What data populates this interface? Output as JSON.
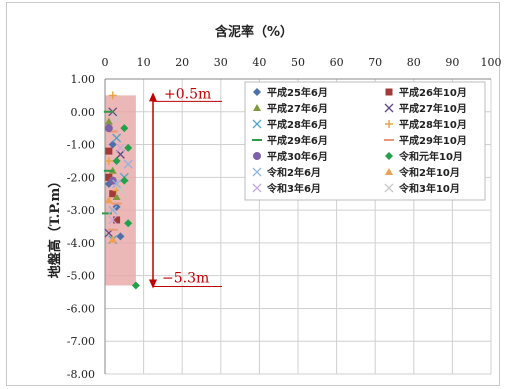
{
  "chart_data": {
    "type": "scatter",
    "title": "含泥率（%）",
    "xlabel": "",
    "ylabel": "地盤高（T.P.m）",
    "xlim": [
      0,
      100
    ],
    "ylim": [
      -8,
      1
    ],
    "x_ticks": [
      "0",
      "10",
      "20",
      "30",
      "40",
      "50",
      "60",
      "70",
      "80",
      "90",
      "100"
    ],
    "y_ticks": [
      "1.00",
      "0.00",
      "-1.00",
      "-2.00",
      "-3.00",
      "-4.00",
      "-5.00",
      "-6.00",
      "-7.00",
      "-8.00"
    ],
    "grid": true,
    "legend_position": "top-right",
    "shaded_range": {
      "x": [
        0,
        8
      ],
      "y": [
        -5.3,
        0.5
      ],
      "color": "#e6a5a5"
    },
    "annotations": [
      {
        "text": "+0.5m",
        "y": 0.5
      },
      {
        "text": "−5.3m",
        "y": -5.3
      }
    ],
    "annotation_color": "#c00000",
    "series": [
      {
        "name": "平成25年6月",
        "marker": "diamond",
        "color": "#4f6fa8",
        "points": [
          [
            2,
            -1.0
          ],
          [
            1,
            -2.2
          ],
          [
            4,
            -3.8
          ],
          [
            3,
            -2.9
          ]
        ]
      },
      {
        "name": "平成26年10月",
        "marker": "square",
        "color": "#a23b37",
        "points": [
          [
            1,
            -1.2
          ],
          [
            2,
            -2.5
          ],
          [
            3,
            -3.3
          ],
          [
            1,
            -2.0
          ]
        ]
      },
      {
        "name": "平成27年6月",
        "marker": "triangle",
        "color": "#7f9a3d",
        "points": [
          [
            1,
            -0.3
          ],
          [
            2,
            -1.8
          ],
          [
            3,
            -2.6
          ]
        ]
      },
      {
        "name": "平成27年10月",
        "marker": "x",
        "color": "#5e4a8a",
        "points": [
          [
            2,
            0.0
          ],
          [
            4,
            -1.3
          ],
          [
            1,
            -3.7
          ]
        ]
      },
      {
        "name": "平成28年6月",
        "marker": "x",
        "color": "#4aa5c7",
        "points": [
          [
            3,
            -0.8
          ],
          [
            5,
            -2.0
          ],
          [
            2,
            -3.9
          ]
        ]
      },
      {
        "name": "平成28年10月",
        "marker": "plus",
        "color": "#e7a24a",
        "points": [
          [
            2,
            0.5
          ],
          [
            1,
            -1.5
          ],
          [
            3,
            -2.4
          ]
        ]
      },
      {
        "name": "平成29年6月",
        "marker": "dash",
        "color": "#2e9a4a",
        "points": [
          [
            1,
            0.0
          ],
          [
            1,
            -1.8
          ],
          [
            0.5,
            -3.1
          ]
        ]
      },
      {
        "name": "平成29年10月",
        "marker": "dash",
        "color": "#e79a75",
        "points": [
          [
            2,
            -0.6
          ],
          [
            3,
            -2.8
          ],
          [
            2,
            -3.6
          ]
        ]
      },
      {
        "name": "平成30年6月",
        "marker": "circle",
        "color": "#7d62a8",
        "points": [
          [
            1,
            -0.5
          ],
          [
            2,
            -2.1
          ]
        ]
      },
      {
        "name": "令和元年10月",
        "marker": "diamond",
        "color": "#21a24a",
        "points": [
          [
            5,
            -0.5
          ],
          [
            6,
            -1.1
          ],
          [
            5,
            -2.1
          ],
          [
            6,
            -3.4
          ],
          [
            8,
            -5.3
          ],
          [
            3,
            -1.5
          ]
        ]
      },
      {
        "name": "令和2年6月",
        "marker": "x",
        "color": "#8fb4de",
        "points": [
          [
            6,
            -1.6
          ],
          [
            3,
            -2.2
          ],
          [
            2,
            -3.0
          ]
        ]
      },
      {
        "name": "令和2年10月",
        "marker": "triangle",
        "color": "#f0a050",
        "points": [
          [
            1,
            -2.7
          ],
          [
            2,
            -3.9
          ]
        ]
      },
      {
        "name": "令和3年6月",
        "marker": "x",
        "color": "#c4a8de",
        "points": [
          [
            4,
            -1.1
          ],
          [
            2,
            -3.3
          ]
        ]
      },
      {
        "name": "令和3年10月",
        "marker": "x",
        "color": "#c8c8c8",
        "points": [
          [
            3,
            -0.2
          ],
          [
            4,
            -2.4
          ]
        ]
      }
    ]
  }
}
